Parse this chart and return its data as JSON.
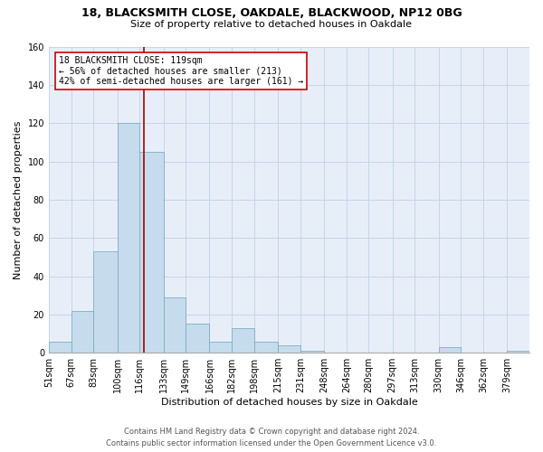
{
  "title1": "18, BLACKSMITH CLOSE, OAKDALE, BLACKWOOD, NP12 0BG",
  "title2": "Size of property relative to detached houses in Oakdale",
  "xlabel": "Distribution of detached houses by size in Oakdale",
  "ylabel": "Number of detached properties",
  "bin_labels": [
    "51sqm",
    "67sqm",
    "83sqm",
    "100sqm",
    "116sqm",
    "133sqm",
    "149sqm",
    "166sqm",
    "182sqm",
    "198sqm",
    "215sqm",
    "231sqm",
    "248sqm",
    "264sqm",
    "280sqm",
    "297sqm",
    "313sqm",
    "330sqm",
    "346sqm",
    "362sqm",
    "379sqm"
  ],
  "bar_heights": [
    6,
    22,
    53,
    120,
    105,
    29,
    15,
    6,
    13,
    6,
    4,
    1,
    0,
    0,
    0,
    0,
    0,
    3,
    0,
    0,
    1
  ],
  "bar_color": "#c6dcec",
  "bar_edge_color": "#7aaec8",
  "property_line_x": 119,
  "bin_edges": [
    51,
    67,
    83,
    100,
    116,
    133,
    149,
    166,
    182,
    198,
    215,
    231,
    248,
    264,
    280,
    297,
    313,
    330,
    346,
    362,
    379,
    395
  ],
  "ylim": [
    0,
    160
  ],
  "yticks": [
    0,
    20,
    40,
    60,
    80,
    100,
    120,
    140,
    160
  ],
  "vline_color": "#aa0000",
  "annotation_title": "18 BLACKSMITH CLOSE: 119sqm",
  "annotation_line1": "← 56% of detached houses are smaller (213)",
  "annotation_line2": "42% of semi-detached houses are larger (161) →",
  "annotation_box_facecolor": "#ffffff",
  "annotation_box_edgecolor": "#cc0000",
  "footnote1": "Contains HM Land Registry data © Crown copyright and database right 2024.",
  "footnote2": "Contains public sector information licensed under the Open Government Licence v3.0.",
  "grid_color": "#c8d4e8",
  "bg_color": "#e8eef8",
  "title1_fontsize": 9,
  "title2_fontsize": 8,
  "ylabel_fontsize": 8,
  "xlabel_fontsize": 8,
  "tick_fontsize": 7,
  "footnote_fontsize": 6
}
